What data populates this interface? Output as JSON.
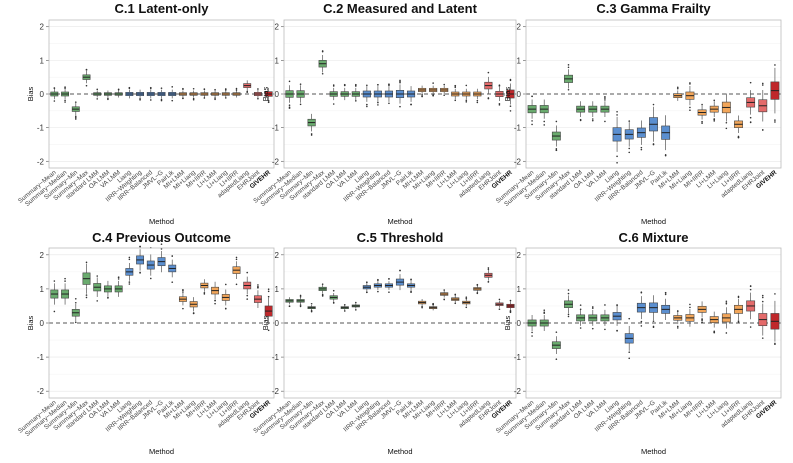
{
  "figure": {
    "colors": {
      "green": "#6aab6e",
      "blue": "#5b8fd0",
      "orange": "#f2a65a",
      "red_light": "#e46a6a",
      "red_dark": "#c0282b",
      "grid": "#e6e6e6",
      "panel_border": "#bbbbbb",
      "zero_line": "#555555"
    }
  },
  "chart_data": [
    {
      "type": "boxplot",
      "title": "C.1 Latent-only",
      "xlabel": "Method",
      "ylabel": "Bias",
      "ylim": [
        -2.2,
        2.2
      ],
      "yticks": [
        -2,
        -1,
        0,
        1,
        2
      ],
      "reference_line": 0,
      "categories": [
        "Summary−Mean",
        "Summary−Median",
        "Summary−Min",
        "Summary−Max",
        "standard LMM",
        "OA LMM",
        "VA LMM",
        "Liang",
        "IIRR−Weighting",
        "IIRR−Balanced",
        "JMVL−G",
        "PairLik",
        "MI+LMM",
        "MI+Liang",
        "MI+IIRR",
        "LI+LMM",
        "LI+Liang",
        "LI+IIRR",
        "adaptedLiang",
        "EHRJoint",
        "GIVEHR"
      ],
      "groups": [
        "green",
        "green",
        "green",
        "green",
        "green",
        "green",
        "green",
        "blue",
        "blue",
        "blue",
        "blue",
        "blue",
        "orange",
        "orange",
        "orange",
        "orange",
        "orange",
        "orange",
        "red_light",
        "red_light",
        "red_dark"
      ],
      "medians": [
        0.0,
        0.0,
        -0.45,
        0.5,
        0.0,
        0.0,
        0.0,
        0.0,
        0.0,
        0.0,
        0.0,
        0.0,
        0.0,
        0.0,
        0.0,
        0.0,
        0.0,
        0.0,
        0.25,
        0.0,
        0.0
      ],
      "spreads": [
        0.06,
        0.06,
        0.07,
        0.07,
        0.04,
        0.04,
        0.04,
        0.05,
        0.05,
        0.05,
        0.05,
        0.05,
        0.04,
        0.04,
        0.04,
        0.04,
        0.04,
        0.04,
        0.06,
        0.05,
        0.07
      ]
    },
    {
      "type": "boxplot",
      "title": "C.2 Measured and Latent",
      "xlabel": "Method",
      "ylabel": "Bias",
      "ylim": [
        -2.2,
        2.2
      ],
      "yticks": [
        -2,
        -1,
        0,
        1,
        2
      ],
      "reference_line": 0,
      "categories": [
        "Summary−Mean",
        "Summary−Median",
        "Summary−Min",
        "Summary−Max",
        "standard LMM",
        "OA LMM",
        "VA LMM",
        "Liang",
        "IIRR−Weighting",
        "IIRR−Balanced",
        "JMVL−G",
        "PairLik",
        "MI+LMM",
        "MI+Liang",
        "MI+IIRR",
        "LI+LMM",
        "LI+Liang",
        "LI+IIRR",
        "adaptedLiang",
        "EHRJoint",
        "GIVEHR"
      ],
      "groups": [
        "green",
        "green",
        "green",
        "green",
        "green",
        "green",
        "green",
        "blue",
        "blue",
        "blue",
        "blue",
        "blue",
        "orange",
        "orange",
        "orange",
        "orange",
        "orange",
        "orange",
        "red_light",
        "red_light",
        "red_dark"
      ],
      "medians": [
        0.0,
        0.0,
        -0.85,
        0.9,
        0.0,
        0.0,
        0.0,
        0.0,
        0.0,
        0.0,
        0.0,
        0.0,
        0.12,
        0.12,
        0.12,
        0.0,
        0.0,
        0.0,
        0.25,
        0.0,
        0.0
      ],
      "spreads": [
        0.1,
        0.1,
        0.1,
        0.1,
        0.07,
        0.07,
        0.07,
        0.09,
        0.09,
        0.09,
        0.11,
        0.09,
        0.05,
        0.05,
        0.05,
        0.06,
        0.06,
        0.06,
        0.1,
        0.08,
        0.12
      ]
    },
    {
      "type": "boxplot",
      "title": "C.3 Gamma Frailty",
      "xlabel": "Method",
      "ylabel": "Bias",
      "ylim": [
        -2.2,
        2.2
      ],
      "yticks": [
        -2,
        -1,
        0,
        1,
        2
      ],
      "reference_line": 0,
      "categories": [
        "Summary−Mean",
        "Summary−Median",
        "Summary−Min",
        "Summary−Max",
        "standard LMM",
        "OA LMM",
        "VA LMM",
        "Liang",
        "IIRR−Weighting",
        "IIRR−Balanced",
        "JMVL−G",
        "PairLik",
        "MI+LMM",
        "MI+Liang",
        "MI+IIRR",
        "LI+LMM",
        "LI+Liang",
        "LI+IIRR",
        "adaptedLiang",
        "EHRJoint",
        "GIVEHR"
      ],
      "groups": [
        "green",
        "green",
        "green",
        "green",
        "green",
        "green",
        "green",
        "blue",
        "blue",
        "blue",
        "blue",
        "blue",
        "orange",
        "orange",
        "orange",
        "orange",
        "orange",
        "orange",
        "red_light",
        "red_light",
        "red_dark"
      ],
      "medians": [
        -0.45,
        -0.45,
        -1.25,
        0.45,
        -0.45,
        -0.45,
        -0.45,
        -1.2,
        -1.2,
        -1.15,
        -0.9,
        -1.15,
        -0.05,
        -0.05,
        -0.55,
        -0.45,
        -0.4,
        -0.9,
        -0.25,
        -0.35,
        0.1
      ],
      "spreads": [
        0.11,
        0.11,
        0.12,
        0.11,
        0.09,
        0.09,
        0.09,
        0.2,
        0.14,
        0.14,
        0.2,
        0.2,
        0.06,
        0.11,
        0.08,
        0.09,
        0.16,
        0.1,
        0.14,
        0.18,
        0.26
      ]
    },
    {
      "type": "boxplot",
      "title": "C.4 Previous Outcome",
      "xlabel": "Method",
      "ylabel": "Bias",
      "ylim": [
        -2.2,
        2.2
      ],
      "yticks": [
        -2,
        -1,
        0,
        1,
        2
      ],
      "reference_line": 0,
      "categories": [
        "Summary−Mean",
        "Summary−Median",
        "Summary−Min",
        "Summary−Max",
        "standard LMM",
        "OA LMM",
        "VA LMM",
        "Liang",
        "IIRR−Weighting",
        "IIRR−Balanced",
        "JMVL−G",
        "PairLik",
        "MI+LMM",
        "MI+Liang",
        "MI+IIRR",
        "LI+LMM",
        "LI+Liang",
        "LI+IIRR",
        "adaptedLiang",
        "EHRJoint",
        "GIVEHR"
      ],
      "groups": [
        "green",
        "green",
        "green",
        "green",
        "green",
        "green",
        "green",
        "blue",
        "blue",
        "blue",
        "blue",
        "blue",
        "orange",
        "orange",
        "orange",
        "orange",
        "orange",
        "orange",
        "red_light",
        "red_light",
        "red_dark"
      ],
      "medians": [
        0.85,
        0.85,
        0.3,
        1.3,
        1.05,
        1.0,
        1.0,
        1.5,
        1.85,
        1.7,
        1.8,
        1.6,
        0.7,
        0.55,
        1.1,
        0.95,
        0.75,
        1.55,
        1.1,
        0.7,
        0.35
      ],
      "spreads": [
        0.12,
        0.12,
        0.1,
        0.17,
        0.11,
        0.09,
        0.09,
        0.1,
        0.12,
        0.12,
        0.12,
        0.1,
        0.07,
        0.08,
        0.07,
        0.1,
        0.09,
        0.1,
        0.1,
        0.1,
        0.15
      ]
    },
    {
      "type": "boxplot",
      "title": "C.5 Threshold",
      "xlabel": "Method",
      "ylabel": "Bias",
      "ylim": [
        -2.2,
        2.2
      ],
      "yticks": [
        -2,
        -1,
        0,
        1,
        2
      ],
      "reference_line": 0,
      "categories": [
        "Summary−Mean",
        "Summary−Median",
        "Summary−Min",
        "Summary−Max",
        "standard LMM",
        "OA LMM",
        "VA LMM",
        "Liang",
        "IIRR−Weighting",
        "IIRR−Balanced",
        "JMVL−G",
        "PairLik",
        "MI+LMM",
        "MI+Liang",
        "MI+IIRR",
        "LI+LMM",
        "LI+Liang",
        "LI+IIRR",
        "adaptedLiang",
        "EHRJoint",
        "GIVEHR"
      ],
      "groups": [
        "green",
        "green",
        "green",
        "green",
        "green",
        "green",
        "green",
        "blue",
        "blue",
        "blue",
        "blue",
        "blue",
        "orange",
        "orange",
        "orange",
        "orange",
        "orange",
        "orange",
        "red_light",
        "red_light",
        "red_dark"
      ],
      "medians": [
        0.65,
        0.65,
        0.45,
        1.0,
        0.75,
        0.45,
        0.5,
        1.05,
        1.1,
        1.1,
        1.2,
        1.1,
        0.6,
        0.45,
        0.85,
        0.7,
        0.6,
        1.0,
        1.4,
        0.55,
        0.5
      ],
      "spreads": [
        0.04,
        0.04,
        0.03,
        0.05,
        0.05,
        0.03,
        0.03,
        0.05,
        0.05,
        0.05,
        0.09,
        0.05,
        0.04,
        0.03,
        0.04,
        0.04,
        0.04,
        0.04,
        0.06,
        0.04,
        0.05
      ]
    },
    {
      "type": "boxplot",
      "title": "C.6 Mixture",
      "xlabel": "Method",
      "ylabel": "Bias",
      "ylim": [
        -2.2,
        2.2
      ],
      "yticks": [
        -2,
        -1,
        0,
        1,
        2
      ],
      "reference_line": 0,
      "categories": [
        "Summary−Mean",
        "Summary−Median",
        "Summary−Min",
        "Summary−Max",
        "standard LMM",
        "OA LMM",
        "VA LMM",
        "Liang",
        "IIRR−Weighting",
        "IIRR−Balanced",
        "JMVL−G",
        "PairLik",
        "MI+LMM",
        "MI+Liang",
        "MI+IIRR",
        "LI+LMM",
        "LI+Liang",
        "LI+IIRR",
        "adaptedLiang",
        "EHRJoint",
        "GIVEHR"
      ],
      "groups": [
        "green",
        "green",
        "green",
        "green",
        "green",
        "green",
        "green",
        "blue",
        "blue",
        "blue",
        "blue",
        "blue",
        "orange",
        "orange",
        "orange",
        "orange",
        "orange",
        "orange",
        "red_light",
        "red_light",
        "red_dark"
      ],
      "medians": [
        0.0,
        0.0,
        -0.65,
        0.55,
        0.15,
        0.15,
        0.15,
        0.2,
        -0.45,
        0.45,
        0.45,
        0.4,
        0.15,
        0.15,
        0.4,
        0.1,
        0.15,
        0.4,
        0.5,
        0.1,
        0.05
      ],
      "spreads": [
        0.09,
        0.09,
        0.1,
        0.1,
        0.09,
        0.09,
        0.09,
        0.11,
        0.14,
        0.13,
        0.14,
        0.12,
        0.07,
        0.1,
        0.09,
        0.09,
        0.12,
        0.12,
        0.15,
        0.18,
        0.23
      ]
    }
  ]
}
